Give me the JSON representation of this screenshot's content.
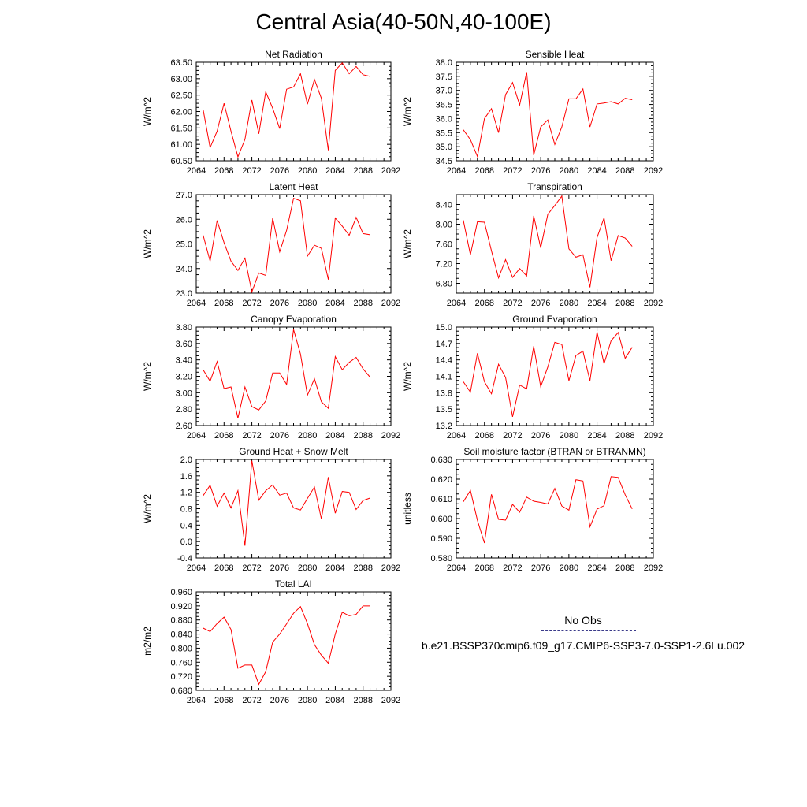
{
  "title": "Central Asia(40-50N,40-100E)",
  "legend": {
    "obs_label": "No Obs",
    "model_label": "b.e21.BSSP370cmip6.f09_g17.CMIP6-SSP3-7.0-SSP1-2.6Lu.002",
    "obs_color": "#3a3a8a",
    "model_color": "#ff0000"
  },
  "chart_data": [
    {
      "type": "line",
      "title": "Net Radiation",
      "ylabel": "W/m^2",
      "xlabel": "",
      "xlim": [
        2064,
        2092
      ],
      "ylim": [
        60.5,
        63.5
      ],
      "xticks": [
        "2064",
        "2068",
        "2072",
        "2076",
        "2080",
        "2084",
        "2088",
        "2092"
      ],
      "yticks": [
        "60.50",
        "61.00",
        "61.50",
        "62.00",
        "62.50",
        "63.00",
        "63.50"
      ],
      "x": [
        2065,
        2066,
        2067,
        2068,
        2069,
        2070,
        2071,
        2072,
        2073,
        2074,
        2075,
        2076,
        2077,
        2078,
        2079,
        2080,
        2081,
        2082,
        2083,
        2084,
        2085,
        2086,
        2087,
        2088,
        2089
      ],
      "series": [
        {
          "values": [
            62.05,
            60.9,
            61.4,
            62.25,
            61.4,
            60.62,
            61.15,
            62.35,
            61.32,
            62.6,
            62.1,
            61.48,
            62.68,
            62.75,
            63.15,
            62.22,
            62.98,
            62.4,
            60.82,
            63.25,
            63.48,
            63.15,
            63.37,
            63.12,
            63.07
          ]
        }
      ]
    },
    {
      "type": "line",
      "title": "Sensible Heat",
      "ylabel": "W/m^2",
      "xlabel": "",
      "xlim": [
        2064,
        2092
      ],
      "ylim": [
        34.5,
        38.0
      ],
      "xticks": [
        "2064",
        "2068",
        "2072",
        "2076",
        "2080",
        "2084",
        "2088",
        "2092"
      ],
      "yticks": [
        "34.5",
        "35.0",
        "35.5",
        "36.0",
        "36.5",
        "37.0",
        "37.5",
        "38.0"
      ],
      "x": [
        2065,
        2066,
        2067,
        2068,
        2069,
        2070,
        2071,
        2072,
        2073,
        2074,
        2075,
        2076,
        2077,
        2078,
        2079,
        2080,
        2081,
        2082,
        2083,
        2084,
        2085,
        2086,
        2087,
        2088,
        2089
      ],
      "series": [
        {
          "values": [
            35.6,
            35.25,
            34.65,
            36.0,
            36.35,
            35.5,
            36.85,
            37.28,
            36.48,
            37.65,
            34.7,
            35.7,
            35.95,
            35.08,
            35.7,
            36.7,
            36.7,
            37.05,
            35.7,
            36.52,
            36.55,
            36.6,
            36.52,
            36.72,
            36.67
          ]
        }
      ]
    },
    {
      "type": "line",
      "title": "Latent Heat",
      "ylabel": "W/m^2",
      "xlabel": "",
      "xlim": [
        2064,
        2092
      ],
      "ylim": [
        23.0,
        27.0
      ],
      "xticks": [
        "2064",
        "2068",
        "2072",
        "2076",
        "2080",
        "2084",
        "2088",
        "2092"
      ],
      "yticks": [
        "23.0",
        "24.0",
        "25.0",
        "26.0",
        "27.0"
      ],
      "x": [
        2065,
        2066,
        2067,
        2068,
        2069,
        2070,
        2071,
        2072,
        2073,
        2074,
        2075,
        2076,
        2077,
        2078,
        2079,
        2080,
        2081,
        2082,
        2083,
        2084,
        2085,
        2086,
        2087,
        2088,
        2089
      ],
      "series": [
        {
          "values": [
            25.35,
            24.3,
            25.95,
            25.05,
            24.3,
            23.92,
            24.42,
            23.05,
            23.82,
            23.72,
            26.05,
            24.68,
            25.55,
            26.85,
            26.75,
            24.5,
            24.95,
            24.82,
            23.55,
            26.05,
            25.72,
            25.35,
            26.08,
            25.42,
            25.37
          ]
        }
      ]
    },
    {
      "type": "line",
      "title": "Transpiration",
      "ylabel": "W/m^2",
      "xlabel": "",
      "xlim": [
        2064,
        2092
      ],
      "ylim": [
        6.6,
        8.6
      ],
      "xticks": [
        "2064",
        "2068",
        "2072",
        "2076",
        "2080",
        "2084",
        "2088",
        "2092"
      ],
      "yticks": [
        "6.80",
        "7.20",
        "7.60",
        "8.00",
        "8.40"
      ],
      "x": [
        2065,
        2066,
        2067,
        2068,
        2069,
        2070,
        2071,
        2072,
        2073,
        2074,
        2075,
        2076,
        2077,
        2078,
        2079,
        2080,
        2081,
        2082,
        2083,
        2084,
        2085,
        2086,
        2087,
        2088,
        2089
      ],
      "series": [
        {
          "values": [
            8.08,
            7.38,
            8.05,
            8.04,
            7.46,
            6.91,
            7.28,
            6.92,
            7.1,
            6.95,
            8.17,
            7.52,
            8.2,
            8.38,
            8.57,
            7.5,
            7.33,
            7.38,
            6.72,
            7.73,
            8.13,
            7.26,
            7.77,
            7.72,
            7.55
          ]
        }
      ]
    },
    {
      "type": "line",
      "title": "Canopy Evaporation",
      "ylabel": "W/m^2",
      "xlabel": "",
      "xlim": [
        2064,
        2092
      ],
      "ylim": [
        2.6,
        3.8
      ],
      "xticks": [
        "2064",
        "2068",
        "2072",
        "2076",
        "2080",
        "2084",
        "2088",
        "2092"
      ],
      "yticks": [
        "2.60",
        "2.80",
        "3.00",
        "3.20",
        "3.40",
        "3.60",
        "3.80"
      ],
      "x": [
        2065,
        2066,
        2067,
        2068,
        2069,
        2070,
        2071,
        2072,
        2073,
        2074,
        2075,
        2076,
        2077,
        2078,
        2079,
        2080,
        2081,
        2082,
        2083,
        2084,
        2085,
        2086,
        2087,
        2088,
        2089
      ],
      "series": [
        {
          "values": [
            3.28,
            3.14,
            3.38,
            3.05,
            3.07,
            2.69,
            3.07,
            2.83,
            2.79,
            2.9,
            3.24,
            3.24,
            3.1,
            3.77,
            3.47,
            2.97,
            3.17,
            2.89,
            2.81,
            3.44,
            3.28,
            3.37,
            3.43,
            3.29,
            3.19
          ]
        }
      ]
    },
    {
      "type": "line",
      "title": "Ground Evaporation",
      "ylabel": "W/m^2",
      "xlabel": "",
      "xlim": [
        2064,
        2092
      ],
      "ylim": [
        13.2,
        15.0
      ],
      "xticks": [
        "2064",
        "2068",
        "2072",
        "2076",
        "2080",
        "2084",
        "2088",
        "2092"
      ],
      "yticks": [
        "13.2",
        "13.5",
        "13.8",
        "14.1",
        "14.4",
        "14.7",
        "15.0"
      ],
      "x": [
        2065,
        2066,
        2067,
        2068,
        2069,
        2070,
        2071,
        2072,
        2073,
        2074,
        2075,
        2076,
        2077,
        2078,
        2079,
        2080,
        2081,
        2082,
        2083,
        2084,
        2085,
        2086,
        2087,
        2088,
        2089
      ],
      "series": [
        {
          "values": [
            14.0,
            13.81,
            14.52,
            14.0,
            13.78,
            14.32,
            14.08,
            13.36,
            13.94,
            13.87,
            14.65,
            13.91,
            14.27,
            14.72,
            14.68,
            14.02,
            14.48,
            14.56,
            14.02,
            14.91,
            14.33,
            14.75,
            14.9,
            14.43,
            14.63
          ]
        }
      ]
    },
    {
      "type": "line",
      "title": "Ground Heat + Snow Melt",
      "ylabel": "W/m^2",
      "xlabel": "",
      "xlim": [
        2064,
        2092
      ],
      "ylim": [
        -0.4,
        2.0
      ],
      "xticks": [
        "2064",
        "2068",
        "2072",
        "2076",
        "2080",
        "2084",
        "2088",
        "2092"
      ],
      "yticks": [
        "-0.4",
        "0.0",
        "0.4",
        "0.8",
        "1.2",
        "1.6",
        "2.0"
      ],
      "x": [
        2065,
        2066,
        2067,
        2068,
        2069,
        2070,
        2071,
        2072,
        2073,
        2074,
        2075,
        2076,
        2077,
        2078,
        2079,
        2080,
        2081,
        2082,
        2083,
        2084,
        2085,
        2086,
        2087,
        2088,
        2089
      ],
      "series": [
        {
          "values": [
            1.12,
            1.37,
            0.86,
            1.18,
            0.82,
            1.24,
            -0.1,
            1.97,
            1.01,
            1.24,
            1.38,
            1.13,
            1.18,
            0.82,
            0.77,
            1.05,
            1.33,
            0.55,
            1.57,
            0.69,
            1.22,
            1.2,
            0.78,
            1.0,
            1.06
          ]
        }
      ]
    },
    {
      "type": "line",
      "title": "Soil moisture factor (BTRAN or BTRANMN)",
      "ylabel": "unitless",
      "xlabel": "",
      "xlim": [
        2064,
        2092
      ],
      "ylim": [
        0.58,
        0.63
      ],
      "xticks": [
        "2064",
        "2068",
        "2072",
        "2076",
        "2080",
        "2084",
        "2088",
        "2092"
      ],
      "yticks": [
        "0.580",
        "0.590",
        "0.600",
        "0.610",
        "0.620",
        "0.630"
      ],
      "x": [
        2065,
        2066,
        2067,
        2068,
        2069,
        2070,
        2071,
        2072,
        2073,
        2074,
        2075,
        2076,
        2077,
        2078,
        2079,
        2080,
        2081,
        2082,
        2083,
        2084,
        2085,
        2086,
        2087,
        2088,
        2089
      ],
      "series": [
        {
          "values": [
            0.6085,
            0.6143,
            0.5991,
            0.5876,
            0.6123,
            0.5996,
            0.5992,
            0.6072,
            0.6032,
            0.6109,
            0.6088,
            0.6082,
            0.6074,
            0.6153,
            0.6064,
            0.6043,
            0.6197,
            0.6191,
            0.5958,
            0.6048,
            0.6065,
            0.6213,
            0.6209,
            0.6121,
            0.6049
          ]
        }
      ]
    },
    {
      "type": "line",
      "title": "Total LAI",
      "ylabel": "m2/m2",
      "xlabel": "",
      "xlim": [
        2064,
        2092
      ],
      "ylim": [
        0.68,
        0.96
      ],
      "xticks": [
        "2064",
        "2068",
        "2072",
        "2076",
        "2080",
        "2084",
        "2088",
        "2092"
      ],
      "yticks": [
        "0.680",
        "0.720",
        "0.760",
        "0.800",
        "0.840",
        "0.880",
        "0.920",
        "0.960"
      ],
      "x": [
        2065,
        2066,
        2067,
        2068,
        2069,
        2070,
        2071,
        2072,
        2073,
        2074,
        2075,
        2076,
        2077,
        2078,
        2079,
        2080,
        2081,
        2082,
        2083,
        2084,
        2085,
        2086,
        2087,
        2088,
        2089
      ],
      "series": [
        {
          "values": [
            0.857,
            0.847,
            0.87,
            0.888,
            0.853,
            0.743,
            0.752,
            0.752,
            0.697,
            0.733,
            0.817,
            0.84,
            0.869,
            0.899,
            0.918,
            0.87,
            0.81,
            0.78,
            0.757,
            0.84,
            0.902,
            0.892,
            0.896,
            0.92,
            0.92
          ]
        }
      ]
    }
  ]
}
